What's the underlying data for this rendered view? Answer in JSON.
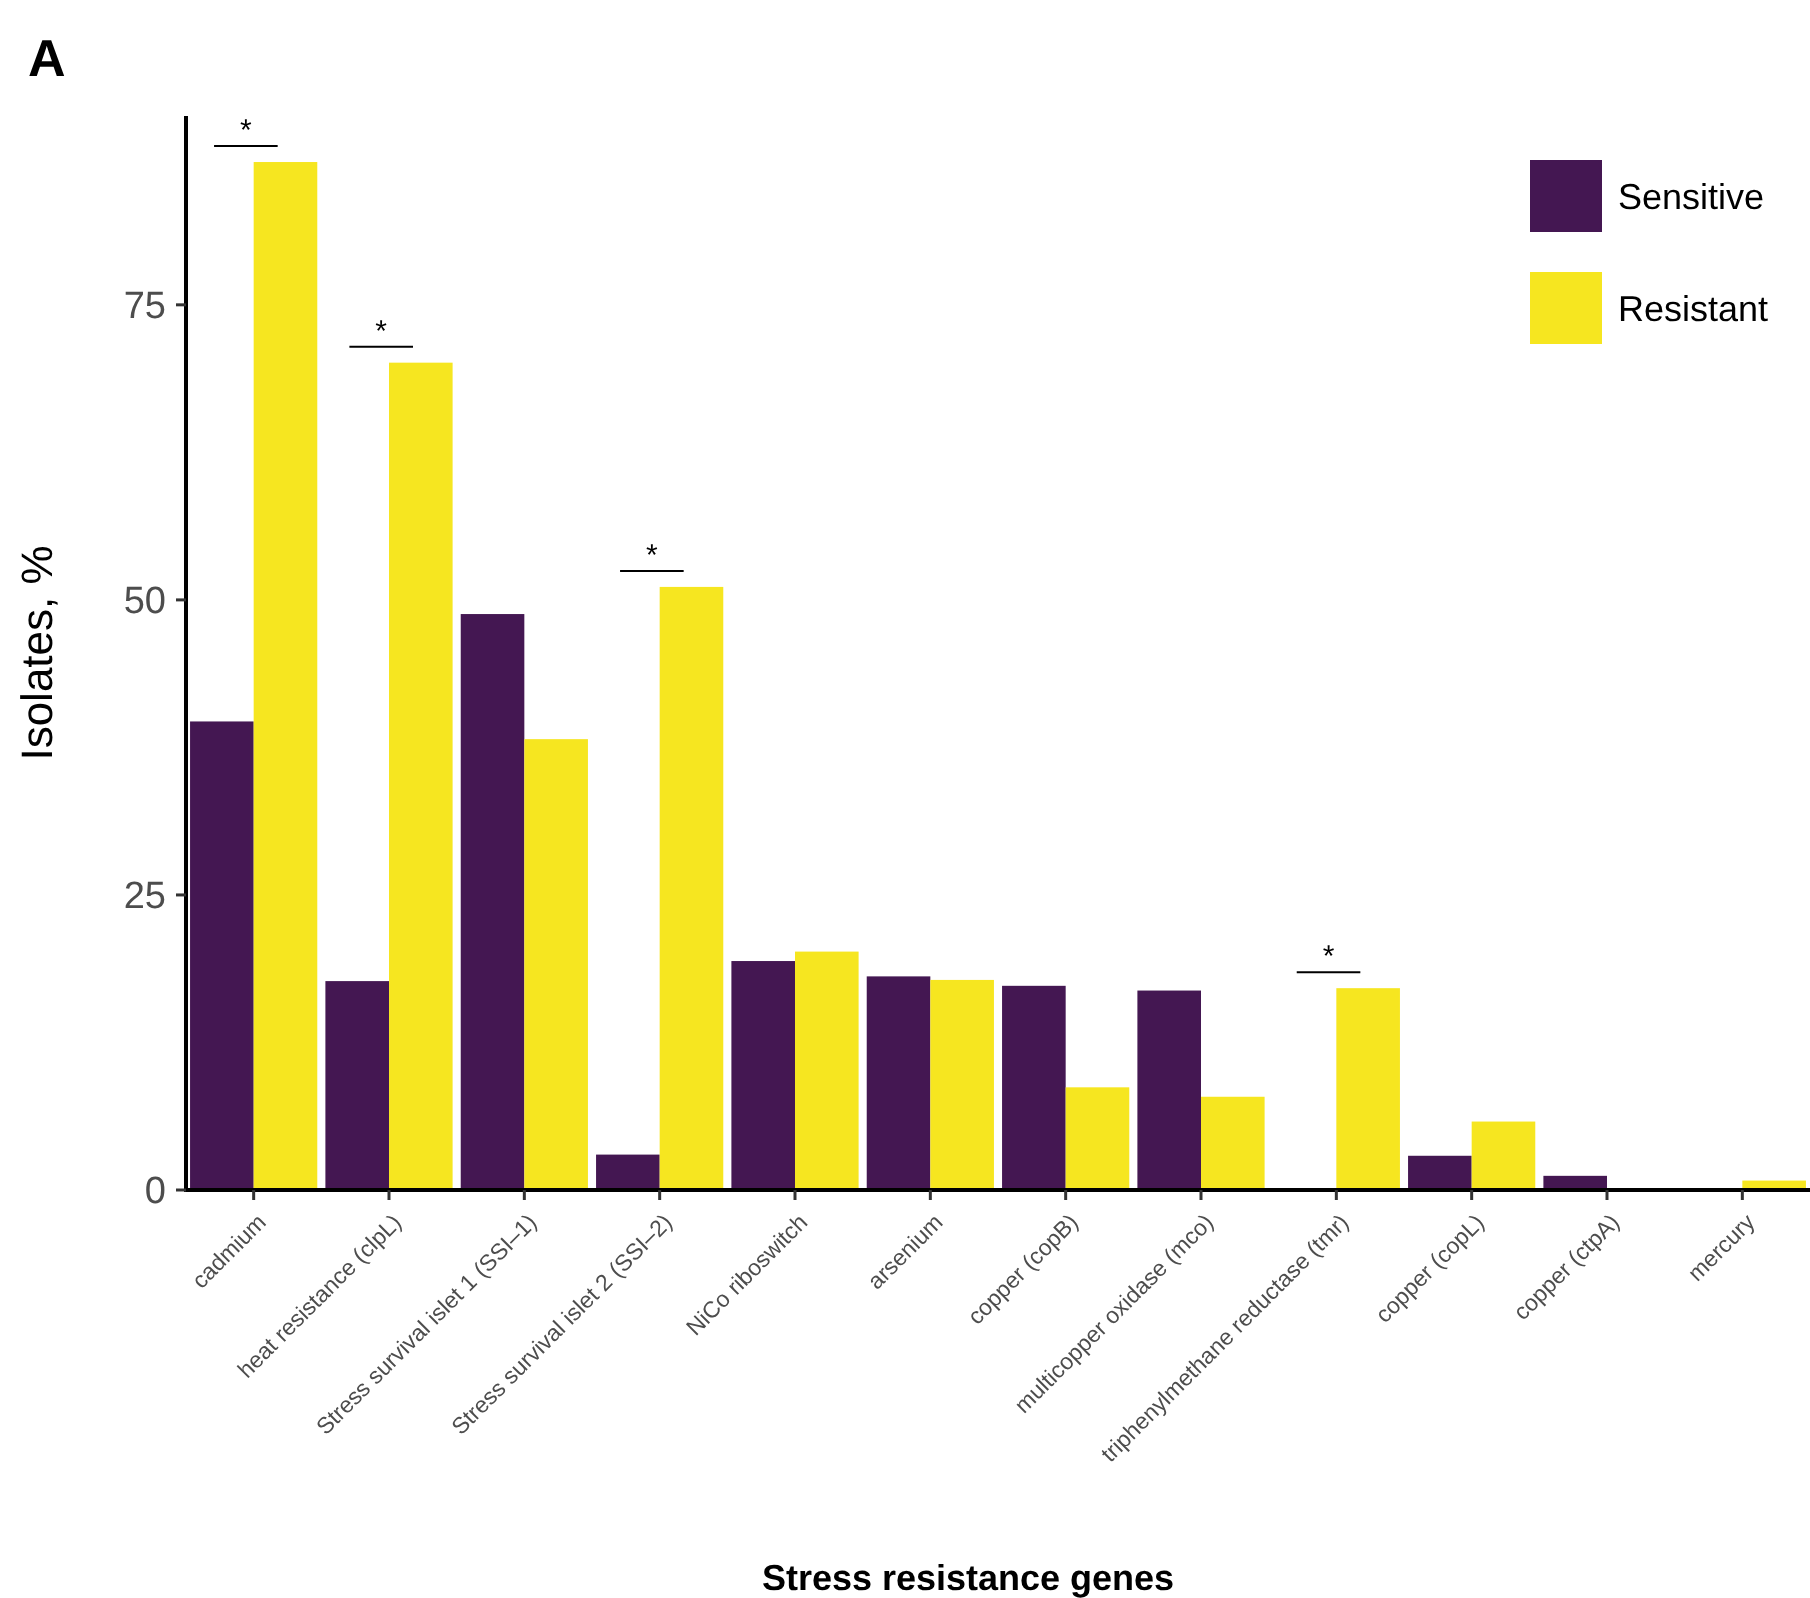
{
  "chart_data": {
    "type": "bar",
    "xlabel": "Stress resistance genes",
    "ylabel": "Isolates, %",
    "categories": [
      "cadmium",
      "heat resistance (clpL)",
      "Stress survival islet 1 (SSI–1)",
      "Stress survival islet 2 (SSI–2)",
      "NiCo riboswitch",
      "arsenium",
      "copper (copB)",
      "multicopper oxidase (mco)",
      "triphenylmethane reductase (tmr)",
      "copper (copL)",
      "copper (ctpA)",
      "mercury"
    ],
    "series": [
      {
        "name": "Sensitive",
        "color": "#441752",
        "values": [
          39.7,
          17.7,
          48.8,
          3.0,
          19.4,
          18.1,
          17.3,
          16.9,
          0,
          2.9,
          1.2,
          0
        ]
      },
      {
        "name": "Resistant",
        "color": "#f6e620",
        "values": [
          87.1,
          70.1,
          38.2,
          51.1,
          20.2,
          17.8,
          8.7,
          7.9,
          17.1,
          5.8,
          0,
          0.8
        ]
      }
    ],
    "ylim": [
      0,
      91
    ],
    "yticks": [
      0,
      25,
      50,
      75
    ],
    "grid": false,
    "legend": "top right",
    "annotations": [
      "A",
      {
        "text": "*",
        "x": "cadmium",
        "y": 87.1
      },
      {
        "text": "*",
        "x": "heat resistance (clpL)",
        "y": 70.1
      },
      {
        "text": "*",
        "x": "Stress survival islet 2 (SSI–2)",
        "y": 51.1
      },
      {
        "text": "*",
        "x": "triphenylmethane reductase (tmr)",
        "y": 17.1
      }
    ]
  }
}
